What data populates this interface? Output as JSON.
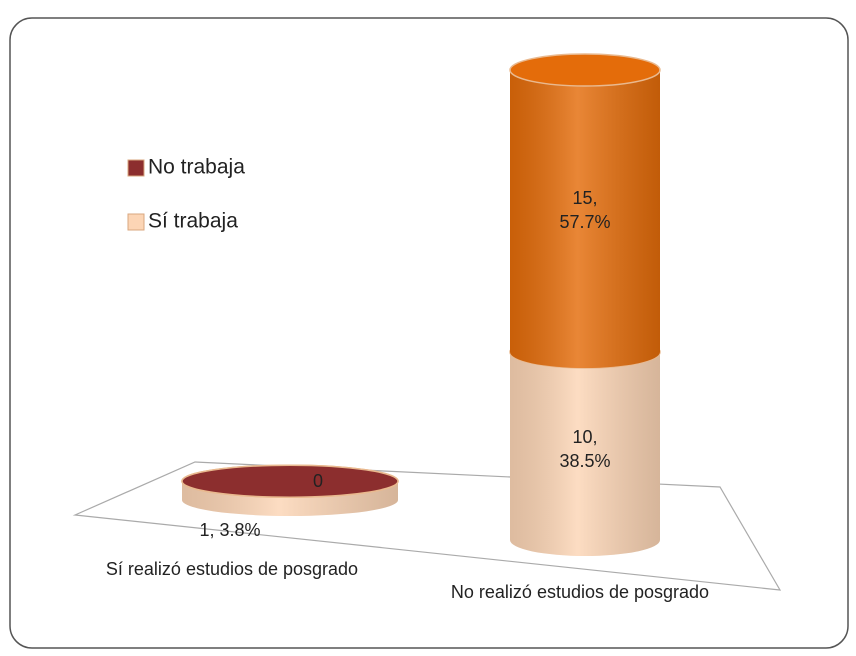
{
  "chart_data": {
    "type": "cylinder-stacked",
    "categories": [
      "Sí realizó estudios de posgrado",
      "No realizó estudios de posgrado"
    ],
    "series": [
      {
        "name": "Sí trabaja",
        "color": "#fcd5b5",
        "values": [
          1,
          10
        ],
        "value_labels": [
          "1, 3.8%",
          "10, 38.5%"
        ]
      },
      {
        "name": "No trabaja",
        "color": "#e46c0a",
        "values": [
          0,
          15
        ],
        "value_labels": [
          "0",
          "15, 57.7%"
        ]
      }
    ],
    "legend": "left"
  }
}
